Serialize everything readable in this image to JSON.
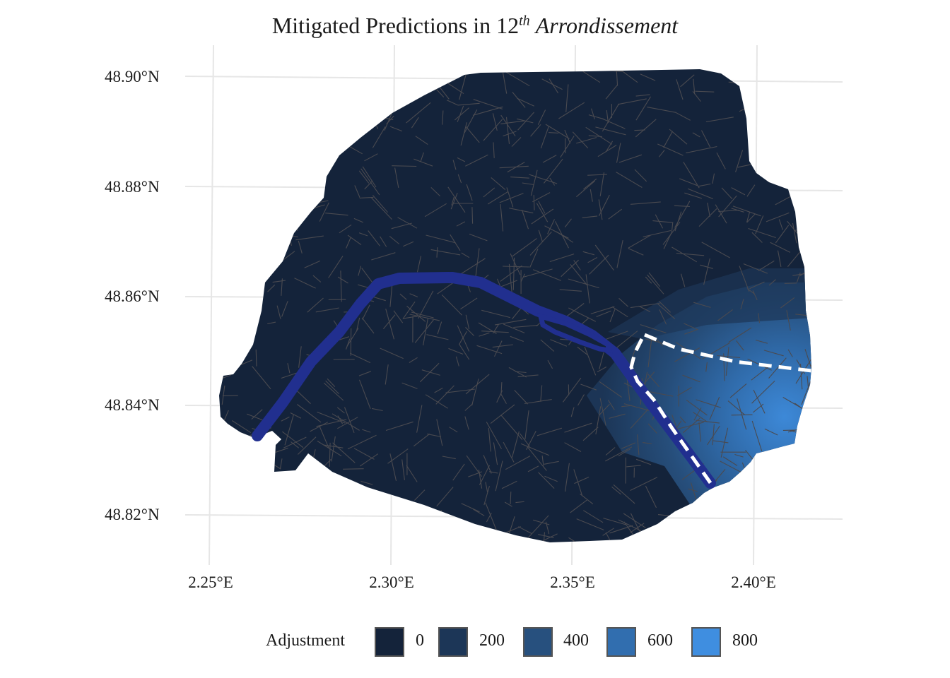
{
  "title": {
    "prefix": "Mitigated Predictions in 12",
    "superscript": "th",
    "italic": "Arrondissement"
  },
  "axes": {
    "y_ticks": [
      "48.90°N",
      "48.88°N",
      "48.86°N",
      "48.84°N",
      "48.82°N"
    ],
    "x_ticks": [
      "2.25°E",
      "2.30°E",
      "2.35°E",
      "2.40°E"
    ]
  },
  "legend": {
    "title": "Adjustment",
    "entries": [
      {
        "label": "0",
        "color": "#14233a"
      },
      {
        "label": "200",
        "color": "#1c3657"
      },
      {
        "label": "400",
        "color": "#27507e"
      },
      {
        "label": "600",
        "color": "#316eaf"
      },
      {
        "label": "800",
        "color": "#3f8ee0"
      }
    ]
  },
  "colors": {
    "base_fill": "#14233a",
    "river": "#212f8f",
    "street_lines": "#4a4a50",
    "highlight_boundary": "#ffffff",
    "grid": "#e6e6e6"
  }
}
